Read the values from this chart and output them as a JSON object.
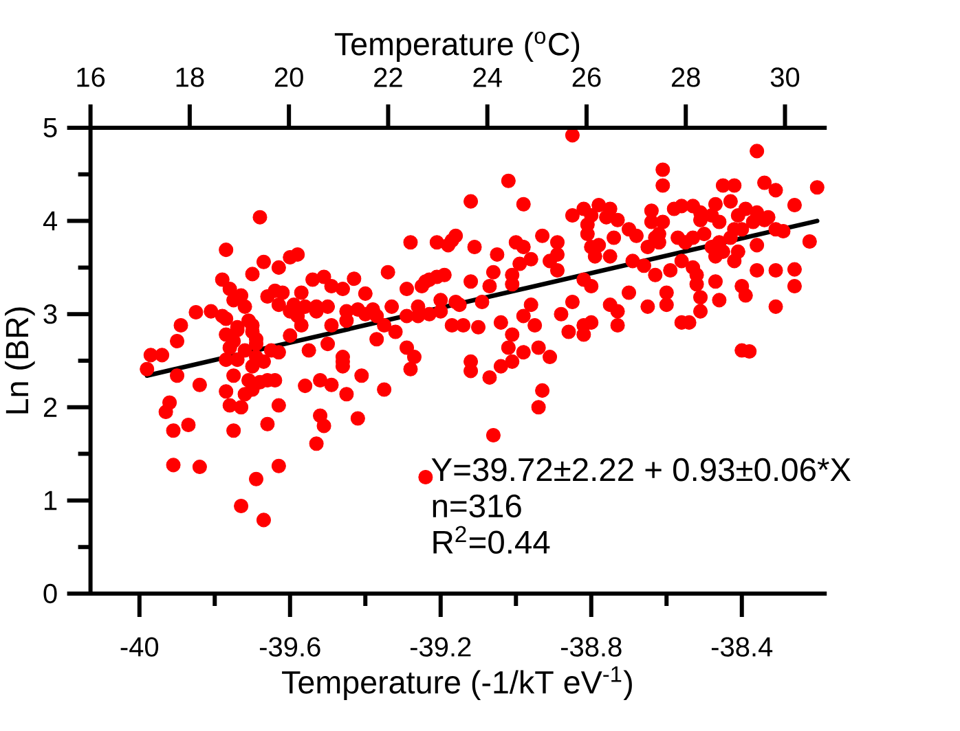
{
  "chart_data": {
    "type": "scatter",
    "xlabel": "Temperature (-1/kT eV$^{-1}$)",
    "ylabel": "Ln (BR)",
    "x2label": "Temperature ($^{o}$C)",
    "xlim": [
      -40.13,
      -38.18
    ],
    "xticks": [
      -40,
      {
        "value": -39.8,
        "label": null
      },
      -39.6,
      {
        "value": -39.4,
        "label": null
      },
      -39.2,
      {
        "value": -39.0,
        "label": null
      },
      -38.8,
      {
        "value": -38.6,
        "label": null
      },
      -38.4
    ],
    "x2lim": [
      16,
      30.8
    ],
    "x2ticks": [
      16,
      18,
      20,
      22,
      24,
      26,
      28,
      30
    ],
    "ylim": [
      0,
      5
    ],
    "yticks": [
      0,
      {
        "value": 0.5,
        "label": null
      },
      1,
      {
        "value": 1.5,
        "label": null
      },
      2,
      {
        "value": 2.5,
        "label": null
      },
      3,
      {
        "value": 3.5,
        "label": null
      },
      4,
      {
        "value": 4.5,
        "label": null
      },
      5
    ],
    "marker": "circle",
    "annotations": [
      "Y=39.72±2.22 + 0.93±0.06*X",
      "n=316",
      "R$^{2}$=0.44"
    ],
    "series": [
      {
        "type": "scatter",
        "color": "#ff0000",
        "x": [
          -39.68,
          -39.77,
          -39.78,
          -39.7,
          -39.67,
          -39.63,
          -39.6,
          -39.58,
          -39.85,
          -39.81,
          -39.89,
          -39.9,
          -39.97,
          -39.94,
          -39.98,
          -39.77,
          -39.73,
          -39.72,
          -39.74,
          -39.7,
          -39.69,
          -39.77,
          -39.75,
          -39.69,
          -39.66,
          -39.62,
          -39.63,
          -39.59,
          -39.6,
          -39.63,
          -39.57,
          -39.55,
          -39.54,
          -39.51,
          -39.53,
          -39.5,
          -39.49,
          -39.46,
          -39.43,
          -39.49,
          -39.45,
          -39.42,
          -39.4,
          -39.38,
          -39.5,
          -39.46,
          -39.37,
          -39.34,
          -39.33,
          -39.32,
          -39.28,
          -39.29,
          -39.29,
          -39.25,
          -39.23,
          -39.26,
          -39.21,
          -39.18,
          -39.16,
          -39.11,
          -39.19,
          -39.12,
          -39.15,
          -39.17,
          -39.12,
          -39.1,
          -39.12,
          -39.02,
          -39.05,
          -39.06,
          -39.01,
          -39.04,
          -39.04,
          -39.0,
          -38.98,
          -38.85,
          -38.36,
          -38.61,
          -38.61,
          -38.45,
          -38.42,
          -38.34,
          -38.31,
          -38.2,
          -38.26,
          -38.47,
          -38.58,
          -38.64,
          -38.53,
          -38.82,
          -38.85,
          -38.78,
          -38.75,
          -38.73,
          -38.81,
          -38.8,
          -38.79,
          -38.75,
          -38.74,
          -38.7,
          -38.68,
          -38.65,
          -38.62,
          -38.61,
          -38.51,
          -38.48,
          -38.46,
          -38.39,
          -38.36,
          -38.33,
          -38.29,
          -38.36,
          -38.43,
          -38.45,
          -38.42,
          -38.48,
          -38.53,
          -38.53,
          -38.56,
          -38.59,
          -38.63,
          -38.66,
          -38.69,
          -38.22,
          -38.36,
          -38.31,
          -38.26,
          -38.26,
          -38.4,
          -38.39,
          -38.47,
          -38.46,
          -38.52,
          -38.51,
          -38.54,
          -38.31,
          -38.4,
          -38.38,
          -38.6,
          -38.6,
          -38.65,
          -38.7,
          -38.73,
          -38.75,
          -38.8,
          -38.82,
          -38.85,
          -38.88,
          -38.82,
          -38.8,
          -38.86,
          -38.89,
          -38.93,
          -38.98,
          -38.91,
          -38.89,
          -38.96,
          -38.96,
          -38.98,
          -38.95,
          -39.09,
          -39.14,
          -38.56,
          -38.98,
          -39.01,
          -39.02,
          -38.91,
          -38.94,
          -39.16,
          -39.9,
          -39.84,
          -39.92,
          -39.93,
          -39.91,
          -39.87,
          -39.91,
          -39.84,
          -39.77,
          -39.76,
          -39.75,
          -39.73,
          -39.72,
          -39.7,
          -39.68,
          -39.66,
          -39.66,
          -39.63,
          -39.69,
          -39.63,
          -39.73,
          -39.67,
          -39.75,
          -39.56,
          -39.52,
          -39.49,
          -39.45,
          -39.52,
          -39.51,
          -39.53,
          -39.42,
          -39.41,
          -39.35,
          -39.46,
          -39.28,
          -39.24,
          -39.07,
          -39.06,
          -39.01,
          -39.12,
          -38.93,
          -38.94,
          -39.76,
          -39.75,
          -39.78,
          -39.74,
          -39.71,
          -39.7,
          -39.69,
          -39.72,
          -39.76,
          -39.77,
          -39.74,
          -39.7,
          -39.65,
          -39.71,
          -39.64,
          -39.67,
          -39.64,
          -39.6,
          -39.57,
          -39.56,
          -39.58,
          -39.53,
          -39.46,
          -39.35,
          -39.27,
          -39.17,
          -39.24,
          -39.21,
          -39.26,
          -39.23,
          -39.2,
          -38.43,
          -38.4,
          -38.37,
          -38.42,
          -38.34,
          -38.31,
          -38.41,
          -38.5,
          -38.56,
          -38.51,
          -38.8,
          -38.76,
          -38.81,
          -38.78,
          -38.64,
          -38.63,
          -38.41,
          -38.62,
          -38.57,
          -38.55,
          -38.46,
          -38.47,
          -38.51,
          -38.52,
          -38.73,
          -38.82,
          -38.89,
          -38.99,
          -39.07,
          -39.01,
          -39.4,
          -39.45,
          -39.37,
          -39.29,
          -39.2
        ],
        "values": [
          4.04,
          3.69,
          3.37,
          3.43,
          3.56,
          3.5,
          3.61,
          3.64,
          3.02,
          3.03,
          2.88,
          2.71,
          2.56,
          2.56,
          2.41,
          2.95,
          3.2,
          3.08,
          2.86,
          2.88,
          2.73,
          2.78,
          2.71,
          2.54,
          3.19,
          3.23,
          3.1,
          3.1,
          2.77,
          2.59,
          2.88,
          2.61,
          3.37,
          3.4,
          3.08,
          3.08,
          3.3,
          3.27,
          3.38,
          2.88,
          3.03,
          3.05,
          3.22,
          3.05,
          2.68,
          2.54,
          2.73,
          3.45,
          3.08,
          2.81,
          3.77,
          3.27,
          2.64,
          3.3,
          3.37,
          3.08,
          3.77,
          3.74,
          3.84,
          3.72,
          3.42,
          4.21,
          3.1,
          2.88,
          3.35,
          2.86,
          2.49,
          4.43,
          3.64,
          3.45,
          3.42,
          2.91,
          2.44,
          3.77,
          4.18,
          4.92,
          4.75,
          4.55,
          4.38,
          4.38,
          4.38,
          4.41,
          4.33,
          4.36,
          4.17,
          4.18,
          4.13,
          4.11,
          4.16,
          4.13,
          4.06,
          4.17,
          4.13,
          4.01,
          3.86,
          3.72,
          3.62,
          3.62,
          3.82,
          3.91,
          3.84,
          3.72,
          3.86,
          3.99,
          4.01,
          4.06,
          3.99,
          4.13,
          4.09,
          4.04,
          3.89,
          3.74,
          3.82,
          3.67,
          3.57,
          3.72,
          3.82,
          3.5,
          3.57,
          3.47,
          3.42,
          3.52,
          3.57,
          3.78,
          3.47,
          3.47,
          3.48,
          3.3,
          3.3,
          3.2,
          3.35,
          3.15,
          3.32,
          3.03,
          2.91,
          3.08,
          2.61,
          2.6,
          3.23,
          3.1,
          3.08,
          3.23,
          2.88,
          3.1,
          3.3,
          3.37,
          3.13,
          3.0,
          2.88,
          2.91,
          2.81,
          3.77,
          3.84,
          3.72,
          3.57,
          3.47,
          3.59,
          3.1,
          2.98,
          2.88,
          3.13,
          2.88,
          2.91,
          2.59,
          2.78,
          2.64,
          2.54,
          2.64,
          3.13,
          2.34,
          2.24,
          2.05,
          1.95,
          1.75,
          1.81,
          1.38,
          1.36,
          2.17,
          2.02,
          1.75,
          2.0,
          2.14,
          2.19,
          2.27,
          2.29,
          1.82,
          2.02,
          1.23,
          1.37,
          0.94,
          0.79,
          2.34,
          2.23,
          2.29,
          2.24,
          2.14,
          1.91,
          1.8,
          1.61,
          1.88,
          2.34,
          2.19,
          2.49,
          2.41,
          1.25,
          2.32,
          1.7,
          2.49,
          2.39,
          2.18,
          2.0,
          3.27,
          3.15,
          2.98,
          2.83,
          2.93,
          2.81,
          2.68,
          2.61,
          2.64,
          2.51,
          2.51,
          2.44,
          2.61,
          2.29,
          2.29,
          2.49,
          3.25,
          3.03,
          3.23,
          3.08,
          2.98,
          3.03,
          2.44,
          2.88,
          2.54,
          3.79,
          3.35,
          3.4,
          2.98,
          3.0,
          3.03,
          4.21,
          3.91,
          3.99,
          3.91,
          4.01,
          3.91,
          3.67,
          3.86,
          4.16,
          4.09,
          4.06,
          4.04,
          3.96,
          3.74,
          3.99,
          3.82,
          4.06,
          3.77,
          3.82,
          3.77,
          3.77,
          3.62,
          3.18,
          3.42,
          3.03,
          2.78,
          3.64,
          3.54,
          3.3,
          3.32,
          3.0,
          2.93,
          2.98,
          2.98,
          3.15
        ]
      },
      {
        "type": "line",
        "color": "#000000",
        "marker": "none",
        "line_style": "solid",
        "x": [
          -39.98,
          -38.2
        ],
        "values": [
          2.34,
          4.0
        ]
      }
    ]
  }
}
